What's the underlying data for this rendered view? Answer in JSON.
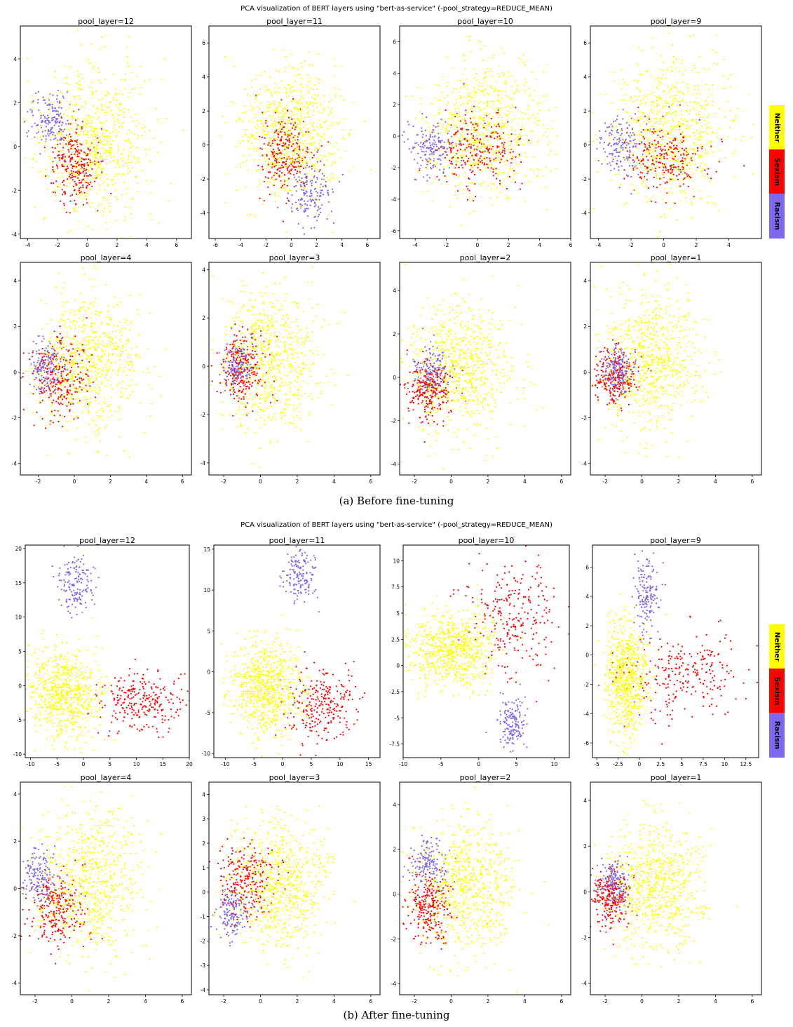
{
  "colors": {
    "Neither": "#ffff00",
    "Sexism": "#ff0000",
    "Racism": "#7b68ee"
  },
  "figures": [
    {
      "title": "PCA visualization of BERT layers using \"bert-as-service\" (-pool_strategy=REDUCE_MEAN)",
      "caption": "(a) Before fine-tuning",
      "legend": [
        "Neither",
        "Sexism",
        "Racism"
      ]
    },
    {
      "title": "PCA visualization of BERT layers using \"bert-as-service\" (-pool_strategy=REDUCE_MEAN)",
      "caption": "(b) After fine-tuning",
      "legend": [
        "Neither",
        "Sexism",
        "Racism"
      ]
    }
  ],
  "chart_data": [
    {
      "figure": "(a) Before fine-tuning",
      "type": "scatter",
      "title": "pool_layer=12",
      "xlim": [
        -4.5,
        7
      ],
      "ylim": [
        -4.2,
        5.5
      ],
      "xticks": [
        -4,
        -2,
        0,
        2,
        4,
        6
      ],
      "yticks": [
        -4,
        -2,
        0,
        2,
        4
      ],
      "series": [
        {
          "name": "Neither",
          "center": [
            0.5,
            0.2
          ],
          "spread": [
            1.8,
            1.8
          ]
        },
        {
          "name": "Sexism",
          "center": [
            -0.8,
            -0.8
          ],
          "spread": [
            0.8,
            0.9
          ]
        },
        {
          "name": "Racism",
          "center": [
            -2.5,
            1.2
          ],
          "spread": [
            0.6,
            0.6
          ]
        }
      ]
    },
    {
      "figure": "(a) Before fine-tuning",
      "type": "scatter",
      "title": "pool_layer=11",
      "xlim": [
        -6.5,
        7
      ],
      "ylim": [
        -5.5,
        7
      ],
      "xticks": [
        -6,
        -4,
        -2,
        0,
        2,
        4,
        6
      ],
      "yticks": [
        -4,
        -2,
        0,
        2,
        4,
        6
      ],
      "series": [
        {
          "name": "Neither",
          "center": [
            0,
            0.8
          ],
          "spread": [
            2.0,
            2.0
          ]
        },
        {
          "name": "Sexism",
          "center": [
            -0.5,
            -0.5
          ],
          "spread": [
            1.0,
            1.2
          ]
        },
        {
          "name": "Racism",
          "center": [
            1.5,
            -3.0
          ],
          "spread": [
            0.9,
            0.9
          ]
        }
      ]
    },
    {
      "figure": "(a) Before fine-tuning",
      "type": "scatter",
      "title": "pool_layer=10",
      "xlim": [
        -5,
        6
      ],
      "ylim": [
        -6.5,
        7
      ],
      "xticks": [
        -4,
        -2,
        0,
        2,
        4,
        6
      ],
      "yticks": [
        -6,
        -4,
        -2,
        0,
        2,
        4,
        6
      ],
      "series": [
        {
          "name": "Neither",
          "center": [
            0.5,
            0.5
          ],
          "spread": [
            2.0,
            2.2
          ]
        },
        {
          "name": "Sexism",
          "center": [
            0,
            -0.8
          ],
          "spread": [
            1.4,
            1.2
          ]
        },
        {
          "name": "Racism",
          "center": [
            -3.0,
            -0.8
          ],
          "spread": [
            0.7,
            0.9
          ]
        }
      ]
    },
    {
      "figure": "(a) Before fine-tuning",
      "type": "scatter",
      "title": "pool_layer=9",
      "xlim": [
        -4.5,
        6
      ],
      "ylim": [
        -5.5,
        7
      ],
      "xticks": [
        -4,
        -2,
        0,
        2,
        4
      ],
      "yticks": [
        -4,
        -2,
        0,
        2,
        4,
        6
      ],
      "series": [
        {
          "name": "Neither",
          "center": [
            0.5,
            0.8
          ],
          "spread": [
            1.8,
            2.0
          ]
        },
        {
          "name": "Sexism",
          "center": [
            0,
            -0.8
          ],
          "spread": [
            1.2,
            1.0
          ]
        },
        {
          "name": "Racism",
          "center": [
            -2.5,
            0
          ],
          "spread": [
            0.7,
            0.8
          ]
        }
      ]
    },
    {
      "figure": "(a) Before fine-tuning",
      "type": "scatter",
      "title": "pool_layer=4",
      "xlim": [
        -3,
        6.5
      ],
      "ylim": [
        -4.5,
        4.8
      ],
      "xticks": [
        -2,
        0,
        2,
        4,
        6
      ],
      "yticks": [
        -4,
        -2,
        0,
        2,
        4
      ],
      "series": [
        {
          "name": "Neither",
          "center": [
            0.8,
            0.4
          ],
          "spread": [
            1.4,
            1.5
          ]
        },
        {
          "name": "Sexism",
          "center": [
            -0.8,
            -0.3
          ],
          "spread": [
            0.8,
            0.9
          ]
        },
        {
          "name": "Racism",
          "center": [
            -1.5,
            0.2
          ],
          "spread": [
            0.5,
            0.6
          ]
        }
      ]
    },
    {
      "figure": "(a) Before fine-tuning",
      "type": "scatter",
      "title": "pool_layer=3",
      "xlim": [
        -2.8,
        6.5
      ],
      "ylim": [
        -4.5,
        4.3
      ],
      "xticks": [
        -2,
        0,
        2,
        4,
        6
      ],
      "yticks": [
        -4,
        -2,
        0,
        2,
        4
      ],
      "series": [
        {
          "name": "Neither",
          "center": [
            0.5,
            0.2
          ],
          "spread": [
            1.4,
            1.5
          ]
        },
        {
          "name": "Sexism",
          "center": [
            -1.0,
            0
          ],
          "spread": [
            0.6,
            0.7
          ]
        },
        {
          "name": "Racism",
          "center": [
            -1.2,
            0.1
          ],
          "spread": [
            0.4,
            0.5
          ]
        }
      ]
    },
    {
      "figure": "(a) Before fine-tuning",
      "type": "scatter",
      "title": "pool_layer=2",
      "xlim": [
        -2.8,
        6.5
      ],
      "ylim": [
        -4.5,
        5.3
      ],
      "xticks": [
        -2,
        0,
        2,
        4,
        6
      ],
      "yticks": [
        -4,
        -2,
        0,
        2,
        4
      ],
      "series": [
        {
          "name": "Neither",
          "center": [
            0.5,
            0.5
          ],
          "spread": [
            1.4,
            1.5
          ]
        },
        {
          "name": "Sexism",
          "center": [
            -1.2,
            -0.6
          ],
          "spread": [
            0.6,
            0.7
          ]
        },
        {
          "name": "Racism",
          "center": [
            -1.0,
            0.3
          ],
          "spread": [
            0.5,
            0.6
          ]
        }
      ]
    },
    {
      "figure": "(a) Before fine-tuning",
      "type": "scatter",
      "title": "pool_layer=1",
      "xlim": [
        -2.8,
        6.5
      ],
      "ylim": [
        -4.5,
        4.8
      ],
      "xticks": [
        -2,
        0,
        2,
        4,
        6
      ],
      "yticks": [
        -4,
        -2,
        0,
        2,
        4
      ],
      "series": [
        {
          "name": "Neither",
          "center": [
            0.5,
            0.5
          ],
          "spread": [
            1.3,
            1.5
          ]
        },
        {
          "name": "Sexism",
          "center": [
            -1.5,
            -0.2
          ],
          "spread": [
            0.6,
            0.6
          ]
        },
        {
          "name": "Racism",
          "center": [
            -1.3,
            0.1
          ],
          "spread": [
            0.4,
            0.5
          ]
        }
      ]
    },
    {
      "figure": "(b) After fine-tuning",
      "type": "scatter",
      "title": "pool_layer=12",
      "xlim": [
        -11,
        20
      ],
      "ylim": [
        -10.5,
        20.5
      ],
      "xticks": [
        -10,
        -5,
        0,
        5,
        10,
        15,
        20
      ],
      "yticks": [
        -10,
        -5,
        0,
        5,
        10,
        15,
        20
      ],
      "series": [
        {
          "name": "Neither",
          "center": [
            -4,
            -1
          ],
          "spread": [
            3.5,
            3.5
          ]
        },
        {
          "name": "Sexism",
          "center": [
            11,
            -2.5
          ],
          "spread": [
            4.0,
            2.2
          ]
        },
        {
          "name": "Racism",
          "center": [
            -1.5,
            15
          ],
          "spread": [
            1.8,
            2.2
          ]
        }
      ]
    },
    {
      "figure": "(b) After fine-tuning",
      "type": "scatter",
      "title": "pool_layer=11",
      "xlim": [
        -12,
        17
      ],
      "ylim": [
        -10.5,
        15.5
      ],
      "xticks": [
        -10,
        -5,
        0,
        5,
        10,
        15
      ],
      "yticks": [
        -10,
        -5,
        0,
        5,
        10,
        15
      ],
      "series": [
        {
          "name": "Neither",
          "center": [
            -3,
            -2
          ],
          "spread": [
            3.0,
            2.8
          ]
        },
        {
          "name": "Sexism",
          "center": [
            7,
            -4
          ],
          "spread": [
            3.0,
            2.2
          ]
        },
        {
          "name": "Racism",
          "center": [
            3,
            12
          ],
          "spread": [
            1.5,
            1.6
          ]
        }
      ]
    },
    {
      "figure": "(b) After fine-tuning",
      "type": "scatter",
      "title": "pool_layer=10",
      "xlim": [
        -10,
        12
      ],
      "ylim": [
        -8.8,
        11.5
      ],
      "xticks": [
        -10,
        -5,
        0,
        5,
        10
      ],
      "yticks": [
        -7.5,
        -5.0,
        -2.5,
        0.0,
        2.5,
        5.0,
        7.5,
        10.0
      ],
      "series": [
        {
          "name": "Neither",
          "center": [
            -3.5,
            1.5
          ],
          "spread": [
            2.8,
            1.8
          ]
        },
        {
          "name": "Sexism",
          "center": [
            4.5,
            5
          ],
          "spread": [
            3.0,
            2.8
          ]
        },
        {
          "name": "Racism",
          "center": [
            4.5,
            -5.5
          ],
          "spread": [
            1.0,
            1.3
          ]
        }
      ]
    },
    {
      "figure": "(b) After fine-tuning",
      "type": "scatter",
      "title": "pool_layer=9",
      "xlim": [
        -5.5,
        14
      ],
      "ylim": [
        -7,
        7.5
      ],
      "xticks": [
        -5.0,
        -2.5,
        0.0,
        2.5,
        5.0,
        7.5,
        10.0,
        12.5
      ],
      "yticks": [
        -6,
        -4,
        -2,
        0,
        2,
        4,
        6
      ],
      "series": [
        {
          "name": "Neither",
          "center": [
            -1.5,
            -1.5
          ],
          "spread": [
            1.2,
            2.0
          ]
        },
        {
          "name": "Sexism",
          "center": [
            5,
            -1.5
          ],
          "spread": [
            3.5,
            1.5
          ]
        },
        {
          "name": "Racism",
          "center": [
            0.8,
            4
          ],
          "spread": [
            0.7,
            1.2
          ]
        }
      ]
    },
    {
      "figure": "(b) After fine-tuning",
      "type": "scatter",
      "title": "pool_layer=4",
      "xlim": [
        -2.8,
        6.5
      ],
      "ylim": [
        -4.5,
        4.5
      ],
      "xticks": [
        -2,
        0,
        2,
        4,
        6
      ],
      "yticks": [
        -4,
        -2,
        0,
        2,
        4
      ],
      "series": [
        {
          "name": "Neither",
          "center": [
            1,
            0.3
          ],
          "spread": [
            1.4,
            1.5
          ]
        },
        {
          "name": "Sexism",
          "center": [
            -0.8,
            -0.8
          ],
          "spread": [
            0.8,
            0.8
          ]
        },
        {
          "name": "Racism",
          "center": [
            -1.8,
            0.5
          ],
          "spread": [
            0.5,
            0.6
          ]
        }
      ]
    },
    {
      "figure": "(b) After fine-tuning",
      "type": "scatter",
      "title": "pool_layer=3",
      "xlim": [
        -2.8,
        6.5
      ],
      "ylim": [
        -4.2,
        4.5
      ],
      "xticks": [
        -2,
        0,
        2,
        4,
        6
      ],
      "yticks": [
        -4,
        -3,
        -2,
        -1,
        0,
        1,
        2,
        3,
        4
      ],
      "series": [
        {
          "name": "Neither",
          "center": [
            1,
            0.3
          ],
          "spread": [
            1.3,
            1.3
          ]
        },
        {
          "name": "Sexism",
          "center": [
            -0.8,
            0.5
          ],
          "spread": [
            0.8,
            0.8
          ]
        },
        {
          "name": "Racism",
          "center": [
            -1.5,
            -0.8
          ],
          "spread": [
            0.5,
            0.6
          ]
        }
      ]
    },
    {
      "figure": "(b) After fine-tuning",
      "type": "scatter",
      "title": "pool_layer=2",
      "xlim": [
        -2.8,
        6.5
      ],
      "ylim": [
        -4.5,
        5
      ],
      "xticks": [
        -2,
        0,
        2,
        4,
        6
      ],
      "yticks": [
        -4,
        -2,
        0,
        2,
        4
      ],
      "series": [
        {
          "name": "Neither",
          "center": [
            0.8,
            0.3
          ],
          "spread": [
            1.3,
            1.5
          ]
        },
        {
          "name": "Sexism",
          "center": [
            -1.2,
            -0.6
          ],
          "spread": [
            0.6,
            0.8
          ]
        },
        {
          "name": "Racism",
          "center": [
            -1.3,
            1.3
          ],
          "spread": [
            0.5,
            0.6
          ]
        }
      ]
    },
    {
      "figure": "(b) After fine-tuning",
      "type": "scatter",
      "title": "pool_layer=1",
      "xlim": [
        -2.8,
        6.5
      ],
      "ylim": [
        -4.5,
        4.8
      ],
      "xticks": [
        -2,
        0,
        2,
        4,
        6
      ],
      "yticks": [
        -4,
        -2,
        0,
        2,
        4
      ],
      "series": [
        {
          "name": "Neither",
          "center": [
            0.8,
            0.3
          ],
          "spread": [
            1.3,
            1.4
          ]
        },
        {
          "name": "Sexism",
          "center": [
            -1.7,
            -0.2
          ],
          "spread": [
            0.5,
            0.6
          ]
        },
        {
          "name": "Racism",
          "center": [
            -1.5,
            0.4
          ],
          "spread": [
            0.4,
            0.5
          ]
        }
      ]
    }
  ]
}
